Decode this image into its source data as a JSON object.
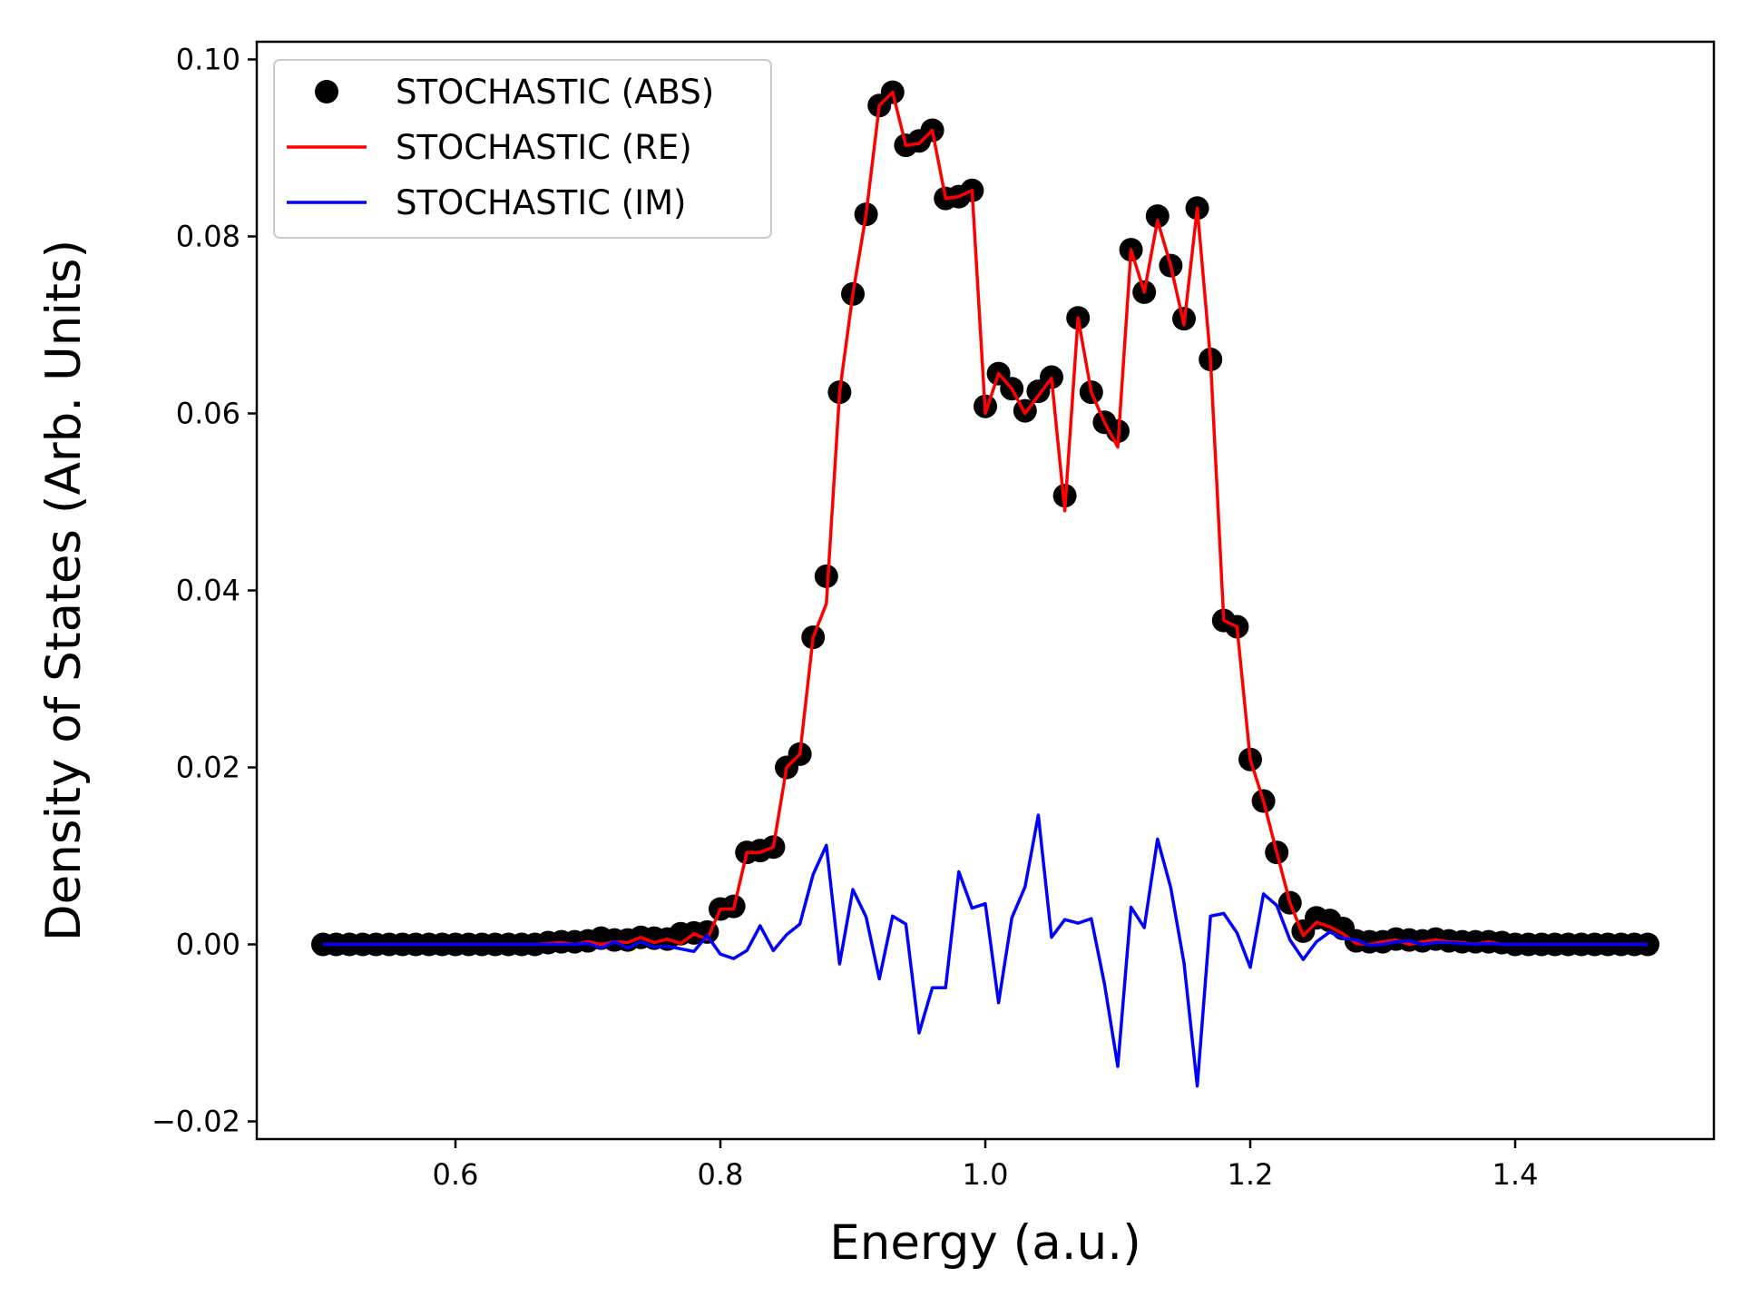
{
  "chart_data": {
    "type": "line",
    "title": "",
    "xlabel": "Energy (a.u.)",
    "ylabel": "Density of States (Arb. Units)",
    "xlim": [
      0.45,
      1.55
    ],
    "ylim": [
      -0.022,
      0.102
    ],
    "grid": false,
    "legend_position": "top-left",
    "x_ticks": [
      0.6,
      0.8,
      1.0,
      1.2,
      1.4
    ],
    "x_tick_labels": [
      "0.6",
      "0.8",
      "1.0",
      "1.2",
      "1.4"
    ],
    "y_ticks": [
      -0.02,
      0.0,
      0.02,
      0.04,
      0.06,
      0.08,
      0.1
    ],
    "y_tick_labels": [
      "−0.02",
      "0.00",
      "0.02",
      "0.04",
      "0.06",
      "0.08",
      "0.10"
    ],
    "x": [
      0.5,
      0.51,
      0.52,
      0.53,
      0.54,
      0.55,
      0.56,
      0.57,
      0.58,
      0.59,
      0.6,
      0.61,
      0.62,
      0.63,
      0.64,
      0.65,
      0.66,
      0.67,
      0.68,
      0.69,
      0.7,
      0.71,
      0.72,
      0.73,
      0.74,
      0.75,
      0.76,
      0.77,
      0.78,
      0.79,
      0.8,
      0.81,
      0.82,
      0.83,
      0.84,
      0.85,
      0.86,
      0.87,
      0.88,
      0.89,
      0.9,
      0.91,
      0.92,
      0.93,
      0.94,
      0.95,
      0.96,
      0.97,
      0.98,
      0.99,
      1.0,
      1.01,
      1.02,
      1.03,
      1.04,
      1.05,
      1.06,
      1.07,
      1.08,
      1.09,
      1.1,
      1.11,
      1.12,
      1.13,
      1.14,
      1.15,
      1.16,
      1.17,
      1.18,
      1.19,
      1.2,
      1.21,
      1.22,
      1.23,
      1.24,
      1.25,
      1.26,
      1.27,
      1.28,
      1.29,
      1.3,
      1.31,
      1.32,
      1.33,
      1.34,
      1.35,
      1.36,
      1.37,
      1.38,
      1.39,
      1.4,
      1.41,
      1.42,
      1.43,
      1.44,
      1.45,
      1.46,
      1.47,
      1.48,
      1.49,
      1.5
    ],
    "series": [
      {
        "name": "STOCHASTIC (ABS)",
        "style": "markers",
        "color": "#000000",
        "values": [
          0,
          0,
          0,
          0,
          0,
          0,
          0,
          0,
          0,
          0,
          0,
          0,
          0,
          0,
          0,
          0,
          0,
          0.0002,
          0.0003,
          0.0003,
          0.0004,
          0.0007,
          0.0005,
          0.0005,
          0.0008,
          0.0007,
          0.0006,
          0.0012,
          0.0013,
          0.0014,
          0.004,
          0.0043,
          0.0104,
          0.0106,
          0.011,
          0.02,
          0.0215,
          0.0347,
          0.0416,
          0.0624,
          0.0735,
          0.0825,
          0.0948,
          0.0963,
          0.0903,
          0.0908,
          0.092,
          0.0843,
          0.0845,
          0.0852,
          0.0608,
          0.0645,
          0.0628,
          0.0603,
          0.0625,
          0.0641,
          0.0507,
          0.0708,
          0.0624,
          0.059,
          0.058,
          0.0785,
          0.0737,
          0.0823,
          0.0767,
          0.0707,
          0.0832,
          0.0661,
          0.0366,
          0.0359,
          0.0209,
          0.0162,
          0.0104,
          0.0047,
          0.0015,
          0.003,
          0.0027,
          0.0018,
          0.0004,
          0.0003,
          0.0003,
          0.0006,
          0.0005,
          0.0004,
          0.0006,
          0.0004,
          0.0003,
          0.0003,
          0.0003,
          0.0002,
          0,
          0,
          0,
          0,
          0,
          0,
          0,
          0,
          0,
          0,
          0
        ]
      },
      {
        "name": "STOCHASTIC (RE)",
        "style": "line",
        "color": "#ff0000",
        "values": [
          0,
          0,
          0,
          0,
          0,
          0,
          0,
          0,
          0,
          0,
          0,
          0,
          0,
          0,
          0,
          0,
          0,
          0.0001,
          0.0002,
          0,
          0.0003,
          0,
          0.0003,
          0.0002,
          0.0008,
          0.0002,
          0.0006,
          0.0001,
          0.0012,
          0.0006,
          0.004,
          0.004,
          0.0104,
          0.0104,
          0.011,
          0.02,
          0.0215,
          0.0347,
          0.0385,
          0.0624,
          0.0735,
          0.0825,
          0.0948,
          0.0963,
          0.0903,
          0.0905,
          0.092,
          0.0843,
          0.0845,
          0.0852,
          0.06,
          0.0645,
          0.0628,
          0.06,
          0.062,
          0.064,
          0.049,
          0.0708,
          0.0624,
          0.059,
          0.0562,
          0.0785,
          0.0737,
          0.0818,
          0.0767,
          0.07,
          0.0832,
          0.0661,
          0.0366,
          0.0359,
          0.0209,
          0.0162,
          0.0104,
          0.0047,
          0.001,
          0.0025,
          0.002,
          0.0012,
          0.0001,
          0,
          0.0003,
          0.0005,
          0,
          0.0003,
          0.0005,
          0.0003,
          0.0002,
          0,
          0.0003,
          0,
          0,
          0,
          0,
          0,
          0,
          0,
          0,
          0,
          0,
          0,
          0
        ]
      },
      {
        "name": "STOCHASTIC (IM)",
        "style": "line",
        "color": "#0000ff",
        "values": [
          0,
          0,
          0,
          0,
          0,
          0,
          0,
          0,
          0,
          0,
          0,
          0,
          0,
          0,
          0,
          0,
          0,
          0,
          0,
          0,
          0.0001,
          -0.0004,
          0.0003,
          -0.0004,
          0.0003,
          -0.0003,
          -0.0002,
          -0.0005,
          -0.0008,
          0.001,
          -0.0011,
          -0.0016,
          -0.0007,
          0.0021,
          -0.0007,
          0.0011,
          0.0023,
          0.0079,
          0.0112,
          -0.0022,
          0.0062,
          0.0031,
          -0.0039,
          0.0032,
          0.0023,
          -0.01,
          -0.0049,
          -0.0049,
          0.0082,
          0.0041,
          0.0046,
          -0.0066,
          0.003,
          0.0065,
          0.0146,
          0.0008,
          0.0028,
          0.0024,
          0.0029,
          -0.0045,
          -0.0138,
          0.0042,
          0.0019,
          0.0119,
          0.0064,
          -0.0021,
          -0.016,
          0.0032,
          0.0035,
          0.0013,
          -0.0026,
          0.0057,
          0.0044,
          0.0005,
          -0.0017,
          0.0003,
          0.0014,
          0.0007,
          0.0005,
          -0.0001,
          0,
          0.0003,
          0.0004,
          0,
          0.0002,
          0.0002,
          0.0001,
          0,
          0.0001,
          0,
          0,
          0,
          0,
          0,
          0,
          0,
          0,
          0,
          0,
          0,
          0
        ]
      }
    ]
  }
}
